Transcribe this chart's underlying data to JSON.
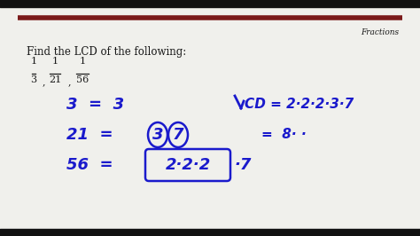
{
  "bg_color": "#f0f0ec",
  "outer_border_color": "#1a1a1a",
  "bar_color": "#7a1a1a",
  "title_label": "Fractions",
  "problem_text": "Find the LCD of the following:",
  "blue_color": "#1a1acc",
  "black_color": "#1a1a1a",
  "frac_items": [
    {
      "num": "1",
      "den": "3"
    },
    {
      "num": "1",
      "den": "21"
    },
    {
      "num": "1",
      "den": "56"
    }
  ],
  "line1_text": "3  =  3",
  "line2_prefix": "21  =",
  "line2_circ1": "3",
  "line2_circ2": "7",
  "line3_prefix": "56  =",
  "line3_box": "2·2·2",
  "line3_suffix": "·7",
  "lcd_angle": "∠",
  "lcd_text": "CD = 2·2·2·3·7",
  "lcd_eq2": "=  8·"
}
